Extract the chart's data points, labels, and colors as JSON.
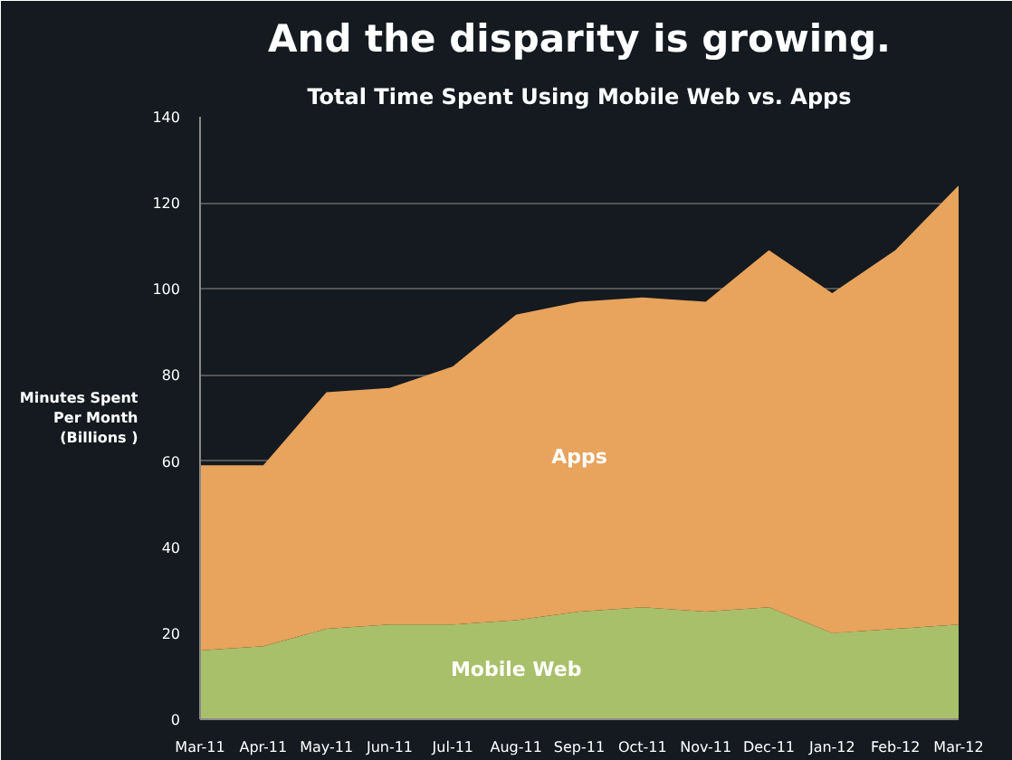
{
  "chart_data": {
    "type": "area",
    "stacked": true,
    "title": "And the disparity is growing.",
    "subtitle": "Total Time Spent Using Mobile Web vs. Apps",
    "ylabel": "Minutes Spent\nPer Month\n(Billions )",
    "categories": [
      "Mar-11",
      "Apr-11",
      "May-11",
      "Jun-11",
      "Jul-11",
      "Aug-11",
      "Sep-11",
      "Oct-11",
      "Nov-11",
      "Dec-11",
      "Jan-12",
      "Feb-12",
      "Mar-12"
    ],
    "series": [
      {
        "name": "Mobile Web",
        "color": "#a9c06a",
        "values": [
          16,
          17,
          21,
          22,
          22,
          23,
          25,
          26,
          25,
          26,
          20,
          21,
          22
        ]
      },
      {
        "name": "Apps",
        "color": "#e8a35c",
        "values": [
          43,
          42,
          55,
          55,
          60,
          71,
          72,
          72,
          72,
          83,
          79,
          88,
          102
        ]
      }
    ],
    "ylim": [
      0,
      140
    ],
    "yticks": [
      0,
      20,
      40,
      60,
      80,
      100,
      120,
      140
    ],
    "grid": "y"
  }
}
